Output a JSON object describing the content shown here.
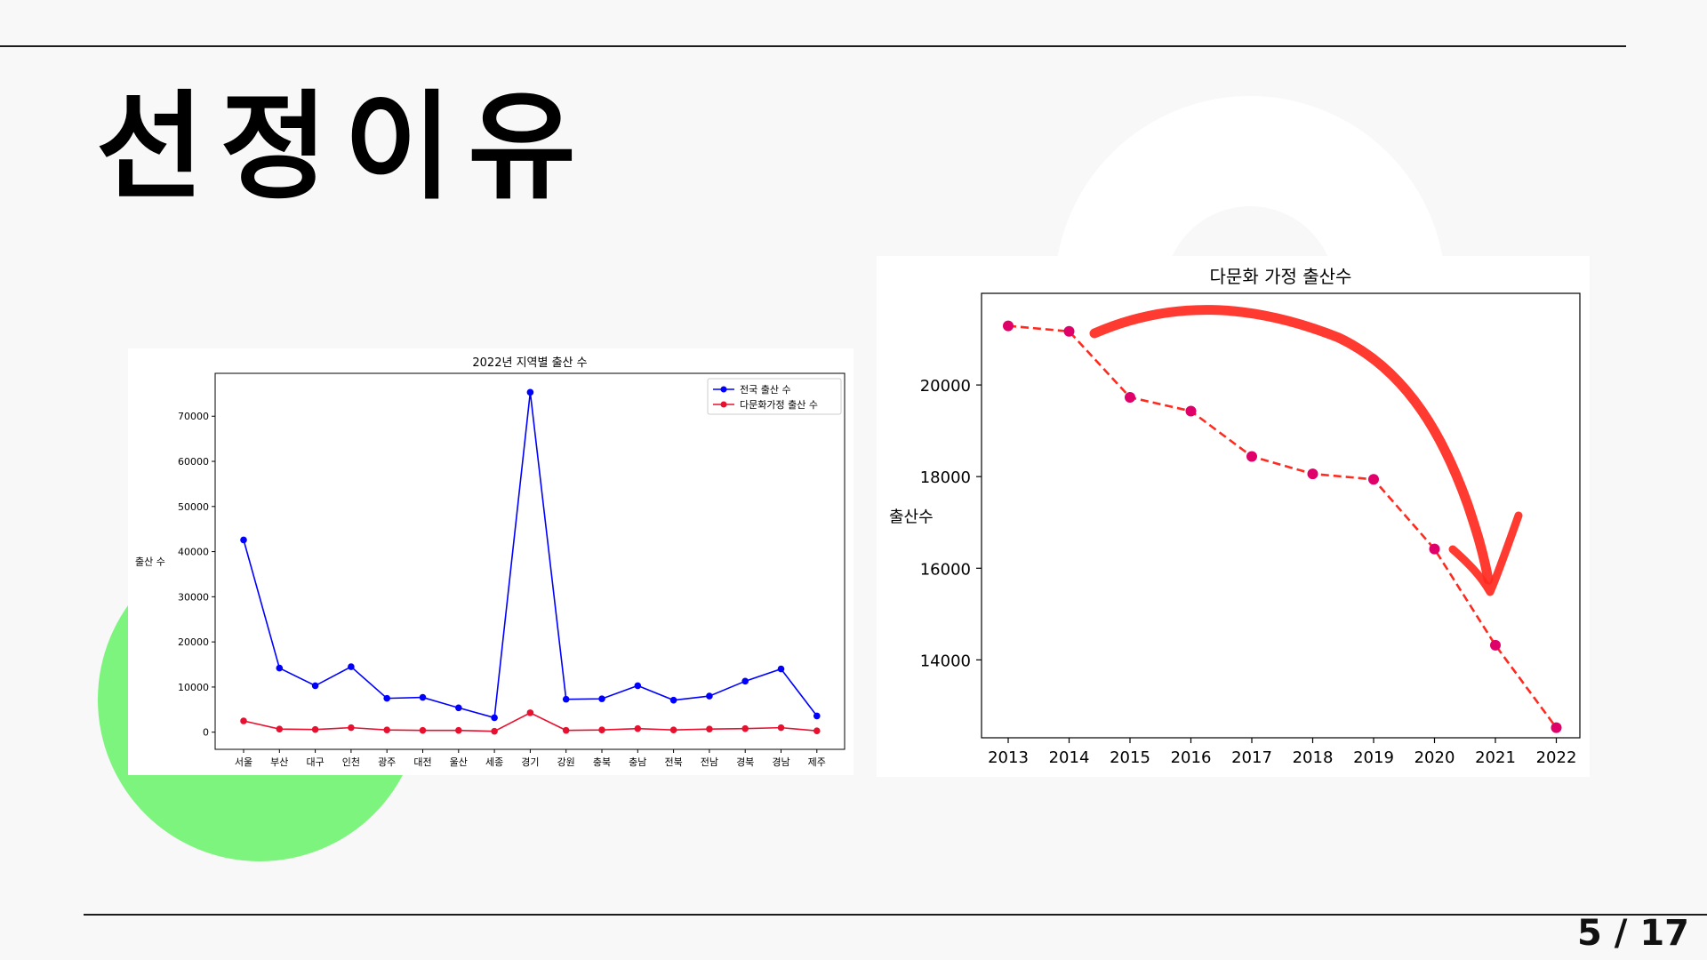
{
  "slide": {
    "title": "선정이유",
    "page_number": "5 / 17"
  },
  "colors": {
    "background": "#f8f8f8",
    "accent_green": "#7df47d",
    "rule": "#1c1c1c",
    "national_series": "#0000ff",
    "multicultural_series": "#e8102f",
    "trend_line": "#ff2a1f",
    "marker_fill": "#e0006a"
  },
  "chart_data": [
    {
      "type": "line",
      "title": "2022년 지역별 출산 수",
      "xlabel": "",
      "ylabel": "출산 수",
      "categories": [
        "서울",
        "부산",
        "대구",
        "인천",
        "광주",
        "대전",
        "울산",
        "세종",
        "경기",
        "강원",
        "충북",
        "충남",
        "전북",
        "전남",
        "경북",
        "경남",
        "제주"
      ],
      "yticks": [
        "0",
        "10000",
        "20000",
        "30000",
        "40000",
        "50000",
        "60000",
        "70000"
      ],
      "ylim": [
        -3800,
        79500
      ],
      "legend_position": "top-right",
      "series": [
        {
          "name": "전국 출산 수",
          "color": "#0000ff",
          "values": [
            42600,
            14200,
            10300,
            14500,
            7500,
            7700,
            5400,
            3200,
            75300,
            7300,
            7400,
            10300,
            7100,
            8000,
            11300,
            14000,
            3600
          ]
        },
        {
          "name": "다문화가정 출산 수",
          "color": "#e8102f",
          "values": [
            2500,
            700,
            600,
            1000,
            500,
            400,
            400,
            200,
            4300,
            400,
            500,
            800,
            500,
            700,
            800,
            1000,
            300
          ]
        }
      ]
    },
    {
      "type": "line",
      "title": "다문화 가정 출산수",
      "xlabel": "",
      "ylabel": "출산수",
      "x": [
        "2013",
        "2014",
        "2015",
        "2016",
        "2017",
        "2018",
        "2019",
        "2020",
        "2021",
        "2022"
      ],
      "yticks": [
        "14000",
        "16000",
        "18000",
        "20000"
      ],
      "ylim": [
        12300,
        22000
      ],
      "series": [
        {
          "line_style": "dashed",
          "color": "#ff2a1f",
          "marker_color": "#e0006a",
          "values": [
            21290,
            21170,
            19730,
            19430,
            18440,
            18060,
            17940,
            16420,
            14320,
            12520
          ]
        }
      ],
      "annotation": "hand-drawn red downward curved arrow"
    }
  ]
}
